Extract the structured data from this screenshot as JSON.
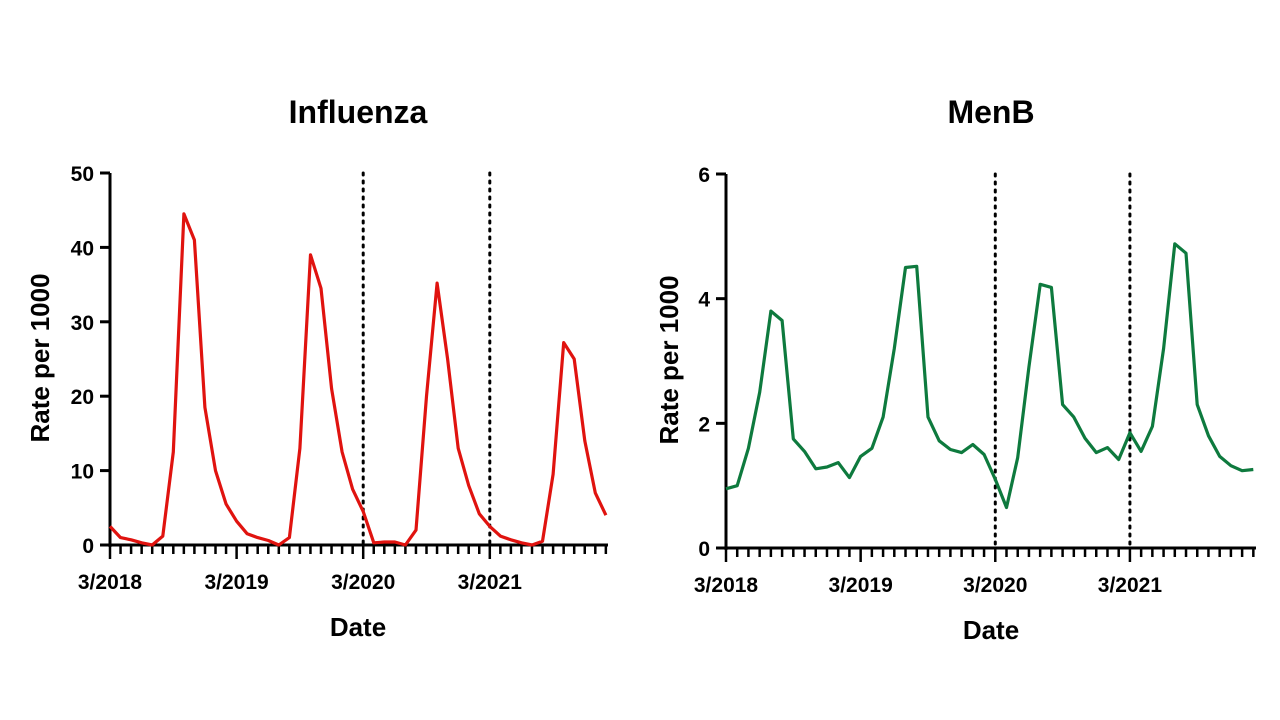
{
  "chart_data": [
    {
      "type": "line",
      "title": "Influenza",
      "xlabel": "Date",
      "ylabel": "Rate per 1000",
      "ylim": [
        0,
        50
      ],
      "yticks": [
        "0",
        "10",
        "20",
        "30",
        "40",
        "50"
      ],
      "xticks": [
        "3/2018",
        "3/2019",
        "3/2020",
        "3/2021"
      ],
      "reference_lines": [
        "3/2020",
        "3/2021"
      ],
      "color": "#e0130f",
      "series": [
        {
          "x": [
            "2018-03",
            "2018-04",
            "2018-05",
            "2018-06",
            "2018-07",
            "2018-08",
            "2018-09",
            "2018-10",
            "2018-11",
            "2018-12",
            "2019-01",
            "2019-02",
            "2019-03",
            "2019-04",
            "2019-05",
            "2019-06",
            "2019-07",
            "2019-08",
            "2019-09",
            "2019-10",
            "2019-11",
            "2019-12",
            "2020-01",
            "2020-02",
            "2020-03",
            "2020-04",
            "2020-05",
            "2020-06",
            "2020-07",
            "2020-08",
            "2020-09",
            "2020-10",
            "2020-11",
            "2020-12",
            "2021-01",
            "2021-02",
            "2021-03",
            "2021-04",
            "2021-05",
            "2021-06",
            "2021-07",
            "2021-08",
            "2021-09",
            "2021-10",
            "2021-11",
            "2021-12",
            "2022-01",
            "2022-02"
          ],
          "values": [
            2.5,
            1,
            0.7,
            0.3,
            0,
            1.2,
            12.5,
            44.5,
            41,
            18.5,
            10,
            5.5,
            3.2,
            1.5,
            1.0,
            0.6,
            0,
            1,
            13,
            39,
            34.5,
            21,
            12.5,
            7.5,
            4.5,
            0.3,
            0.4,
            0.4,
            0,
            2,
            20,
            35.2,
            25,
            13,
            8,
            4.2,
            2.5,
            1.2,
            0.7,
            0.3,
            0,
            0.5,
            9.5,
            27.2,
            25,
            14,
            7,
            4
          ]
        }
      ]
    },
    {
      "type": "line",
      "title": "MenB",
      "xlabel": "Date",
      "ylabel": "Rate per 1000",
      "ylim": [
        0,
        6
      ],
      "yticks": [
        "0",
        "2",
        "4",
        "6"
      ],
      "xticks": [
        "3/2018",
        "3/2019",
        "3/2020",
        "3/2021"
      ],
      "reference_lines": [
        "3/2020",
        "3/2021"
      ],
      "color": "#0e7a3e",
      "series": [
        {
          "x": [
            "2018-03",
            "2018-04",
            "2018-05",
            "2018-06",
            "2018-07",
            "2018-08",
            "2018-09",
            "2018-10",
            "2018-11",
            "2018-12",
            "2019-01",
            "2019-02",
            "2019-03",
            "2019-04",
            "2019-05",
            "2019-06",
            "2019-07",
            "2019-08",
            "2019-09",
            "2019-10",
            "2019-11",
            "2019-12",
            "2020-01",
            "2020-02",
            "2020-03",
            "2020-04",
            "2020-05",
            "2020-06",
            "2020-07",
            "2020-08",
            "2020-09",
            "2020-10",
            "2020-11",
            "2020-12",
            "2021-01",
            "2021-02",
            "2021-03",
            "2021-04",
            "2021-05",
            "2021-06",
            "2021-07",
            "2021-08",
            "2021-09",
            "2021-10",
            "2021-11",
            "2021-12",
            "2022-01",
            "2022-02"
          ],
          "values": [
            0.95,
            1,
            1.6,
            2.5,
            3.8,
            3.65,
            1.75,
            1.55,
            1.27,
            1.3,
            1.37,
            1.13,
            1.47,
            1.6,
            2.1,
            3.2,
            4.5,
            4.52,
            2.1,
            1.72,
            1.58,
            1.53,
            1.66,
            1.5,
            1.1,
            0.65,
            1.45,
            2.9,
            4.23,
            4.18,
            2.3,
            2.1,
            1.76,
            1.53,
            1.61,
            1.42,
            1.85,
            1.55,
            1.95,
            3.2,
            4.88,
            4.73,
            2.3,
            1.8,
            1.47,
            1.32,
            1.24,
            1.26
          ]
        }
      ]
    }
  ]
}
